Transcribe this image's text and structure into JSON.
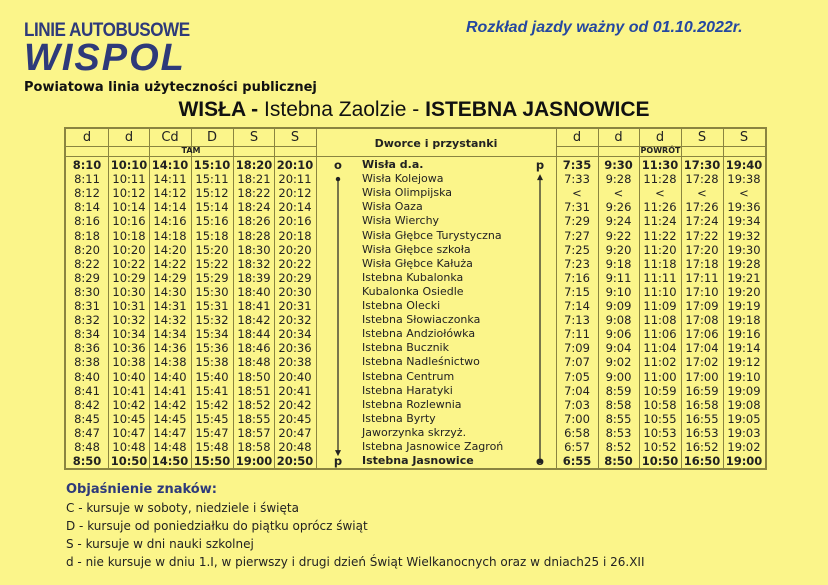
{
  "header": {
    "brand_line1": "LINIE AUTOBUSOWE",
    "brand_logo": "WISPOL",
    "subtitle": "Powiatowa linia użyteczności publicznej",
    "valid_from": "Rozkład jazdy ważny od 01.10.2022r.",
    "route": {
      "a": "WISŁA -",
      "b": " Istebna Zaolzie - ",
      "c": "ISTEBNA JASNOWICE"
    }
  },
  "colors": {
    "background": "#fbf58a",
    "brand": "#2e3a7a",
    "valid": "#2548a0"
  },
  "table": {
    "stops_header": "Dworce i przystanki",
    "tam_label": "TAM",
    "powrot_label": "POWRÓT",
    "tam_marks": [
      "d",
      "d",
      "Cd",
      "D",
      "S",
      "S"
    ],
    "powrot_marks": [
      "d",
      "d",
      "d",
      "S",
      "S"
    ],
    "start_mark_left": "o",
    "end_mark_left": "p",
    "start_mark_right": "p",
    "end_mark_right": "o",
    "stops": [
      "Wisła d.a.",
      "Wisła Kolejowa",
      "Wisła Olimpijska",
      "Wisła Oaza",
      "Wisła Wierchy",
      "Wisła Głębce Turystyczna",
      "Wisła Głębce szkoła",
      "Wisła Głębce Kałuża",
      "Istebna Kubalonka",
      "Kubalonka Osiedle",
      "Istebna Olecki",
      "Istebna Słowiaczonka",
      "Istebna Andziołówka",
      "Istebna Bucznik",
      "Istebna Nadleśnictwo",
      "Istebna Centrum",
      "Istebna Haratyki",
      "Istebna Rozlewnia",
      "Istebna Byrty",
      "Jaworzynka skrzyż.",
      "Istebna Jasnowice Zagroń",
      "Istebna Jasnowice"
    ],
    "tam": [
      [
        "8:10",
        "8:11",
        "8:12",
        "8:14",
        "8:16",
        "8:18",
        "8:20",
        "8:22",
        "8:29",
        "8:30",
        "8:31",
        "8:32",
        "8:34",
        "8:36",
        "8:38",
        "8:40",
        "8:41",
        "8:42",
        "8:45",
        "8:47",
        "8:48",
        "8:50"
      ],
      [
        "10:10",
        "10:11",
        "10:12",
        "10:14",
        "10:16",
        "10:18",
        "10:20",
        "10:22",
        "10:29",
        "10:30",
        "10:31",
        "10:32",
        "10:34",
        "10:36",
        "10:38",
        "10:40",
        "10:41",
        "10:42",
        "10:45",
        "10:47",
        "10:48",
        "10:50"
      ],
      [
        "14:10",
        "14:11",
        "14:12",
        "14:14",
        "14:16",
        "14:18",
        "14:20",
        "14:22",
        "14:29",
        "14:30",
        "14:31",
        "14:32",
        "14:34",
        "14:36",
        "14:38",
        "14:40",
        "14:41",
        "14:42",
        "14:45",
        "14:47",
        "14:48",
        "14:50"
      ],
      [
        "15:10",
        "15:11",
        "15:12",
        "15:14",
        "15:16",
        "15:18",
        "15:20",
        "15:22",
        "15:29",
        "15:30",
        "15:31",
        "15:32",
        "15:34",
        "15:36",
        "15:38",
        "15:40",
        "15:41",
        "15:42",
        "15:45",
        "15:47",
        "15:48",
        "15:50"
      ],
      [
        "18:20",
        "18:21",
        "18:22",
        "18:24",
        "18:26",
        "18:28",
        "18:30",
        "18:32",
        "18:39",
        "18:40",
        "18:41",
        "18:42",
        "18:44",
        "18:46",
        "18:48",
        "18:50",
        "18:51",
        "18:52",
        "18:55",
        "18:57",
        "18:58",
        "19:00"
      ],
      [
        "20:10",
        "20:11",
        "20:12",
        "20:14",
        "20:16",
        "20:18",
        "20:20",
        "20:22",
        "20:29",
        "20:30",
        "20:31",
        "20:32",
        "20:34",
        "20:36",
        "20:38",
        "20:40",
        "20:41",
        "20:42",
        "20:45",
        "20:47",
        "20:48",
        "20:50"
      ]
    ],
    "powrot": [
      [
        "7:35",
        "7:33",
        "<",
        "7:31",
        "7:29",
        "7:27",
        "7:25",
        "7:23",
        "7:16",
        "7:15",
        "7:14",
        "7:13",
        "7:11",
        "7:09",
        "7:07",
        "7:05",
        "7:04",
        "7:03",
        "7:00",
        "6:58",
        "6:57",
        "6:55"
      ],
      [
        "9:30",
        "9:28",
        "<",
        "9:26",
        "9:24",
        "9:22",
        "9:20",
        "9:18",
        "9:11",
        "9:10",
        "9:09",
        "9:08",
        "9:06",
        "9:04",
        "9:02",
        "9:00",
        "8:59",
        "8:58",
        "8:55",
        "8:53",
        "8:52",
        "8:50"
      ],
      [
        "11:30",
        "11:28",
        "<",
        "11:26",
        "11:24",
        "11:22",
        "11:20",
        "11:18",
        "11:11",
        "11:10",
        "11:09",
        "11:08",
        "11:06",
        "11:04",
        "11:02",
        "11:00",
        "10:59",
        "10:58",
        "10:55",
        "10:53",
        "10:52",
        "10:50"
      ],
      [
        "17:30",
        "17:28",
        "<",
        "17:26",
        "17:24",
        "17:22",
        "17:20",
        "17:18",
        "17:11",
        "17:10",
        "17:09",
        "17:08",
        "17:06",
        "17:04",
        "17:02",
        "17:00",
        "16:59",
        "16:58",
        "16:55",
        "16:53",
        "16:52",
        "16:50"
      ],
      [
        "19:40",
        "19:38",
        "<",
        "19:36",
        "19:34",
        "19:32",
        "19:30",
        "19:28",
        "19:21",
        "19:20",
        "19:19",
        "19:18",
        "19:16",
        "19:14",
        "19:12",
        "19:10",
        "19:09",
        "19:08",
        "19:05",
        "19:03",
        "19:02",
        "19:00"
      ]
    ]
  },
  "legend": {
    "title": "Objaśnienie znaków:",
    "items": [
      "C - kursuje w soboty, niedziele i święta",
      "D - kursuje od poniedziałku do piątku oprócz świąt",
      "S - kursuje w dni nauki szkolnej",
      "d - nie kursuje w dniu 1.I, w pierwszy i drugi dzień Świąt Wielkanocnych oraz w dniach25 i 26.XII"
    ]
  }
}
